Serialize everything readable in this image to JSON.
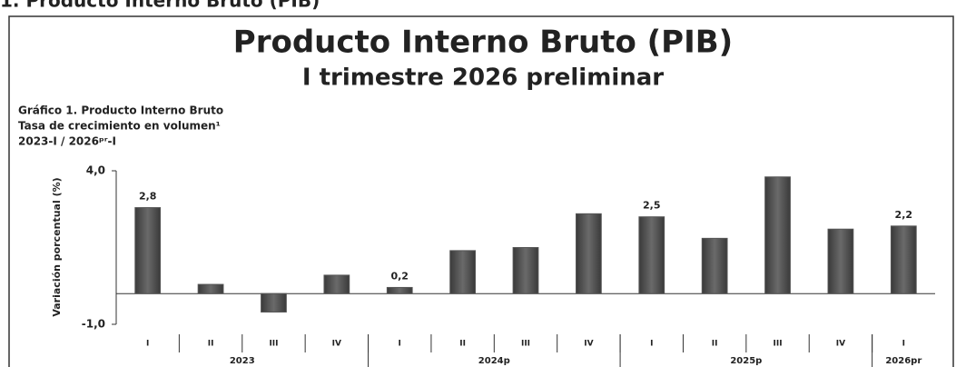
{
  "section_heading": "1. Producto Interno Bruto (PIB)",
  "chart_data": {
    "type": "bar",
    "title": "Producto Interno Bruto (PIB)",
    "subtitle": "I trimestre 2026 preliminar",
    "chart_caption": [
      "Gráfico 1. Producto Interno Bruto",
      "Tasa de crecimiento en volumen¹",
      "2023-I / 2026ᵖʳ-I"
    ],
    "y_label": "Variación porcentual (%)",
    "categories": [
      "I",
      "II",
      "III",
      "IV",
      "I",
      "II",
      "III",
      "IV",
      "I",
      "II",
      "III",
      "IV",
      "I"
    ],
    "groups": [
      {
        "label": "2023",
        "span": 4
      },
      {
        "label": "2024p",
        "span": 4
      },
      {
        "label": "2025p",
        "span": 4
      },
      {
        "label": "2026pr",
        "span": 1
      }
    ],
    "values": [
      2.8,
      0.3,
      -0.6,
      0.6,
      0.2,
      1.4,
      1.5,
      2.6,
      2.5,
      1.8,
      3.8,
      2.1,
      2.2
    ],
    "value_labels": [
      "2,8",
      null,
      null,
      null,
      "0,2",
      null,
      null,
      null,
      "2,5",
      null,
      null,
      null,
      "2,2"
    ],
    "color": "#555555",
    "ylim": [
      -1.0,
      4.0
    ],
    "yticks": [
      {
        "value": 4.0,
        "label": "4,0"
      },
      {
        "value": -1.0,
        "label": "-1,0"
      }
    ]
  }
}
